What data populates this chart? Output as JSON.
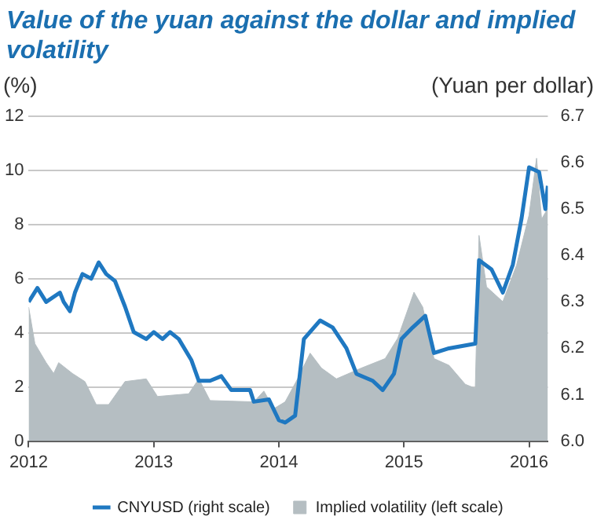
{
  "chart_data": {
    "type": "area",
    "title": "Value of the yuan against the dollar and implied volatility",
    "ylabel": "(%)",
    "y2label": "(Yuan per dollar)",
    "xlim": [
      2012,
      2016.15
    ],
    "xticks": [
      2012,
      2013,
      2014,
      2015,
      2016
    ],
    "ylim": [
      0,
      12
    ],
    "yticks": [
      0,
      2,
      4,
      6,
      8,
      10,
      12
    ],
    "y2lim": [
      6.0,
      6.7
    ],
    "y2ticks": [
      {
        "value": 6.0,
        "label": "6.0"
      },
      {
        "value": 6.1,
        "label": "6.1"
      },
      {
        "value": 6.2,
        "label": "6.2"
      },
      {
        "value": 6.3,
        "label": "6.3"
      },
      {
        "value": 6.4,
        "label": "6.4"
      },
      {
        "value": 6.5,
        "label": "6.5"
      },
      {
        "value": 6.6,
        "label": "6.6"
      },
      {
        "value": 6.7,
        "label": "6.7"
      }
    ],
    "grid": "y",
    "legend": "bottom",
    "series": [
      {
        "name": "Implied volatility (left scale)",
        "color": "#b5bec2",
        "x": [
          2012.0,
          2012.05,
          2012.14,
          2012.2,
          2012.24,
          2012.35,
          2012.45,
          2012.54,
          2012.64,
          2012.77,
          2012.94,
          2013.03,
          2013.28,
          2013.36,
          2013.45,
          2013.8,
          2013.88,
          2013.96,
          2014.05,
          2014.15,
          2014.25,
          2014.34,
          2014.46,
          2014.66,
          2014.85,
          2014.95,
          2015.08,
          2015.15,
          2015.24,
          2015.36,
          2015.49,
          2015.57,
          2015.6,
          2015.66,
          2015.79,
          2015.9,
          2016.0,
          2016.06,
          2016.1,
          2016.15
        ],
        "values": [
          4.95,
          3.6,
          2.9,
          2.5,
          2.9,
          2.5,
          2.2,
          1.35,
          1.35,
          2.2,
          2.3,
          1.65,
          1.75,
          2.3,
          1.5,
          1.45,
          1.85,
          1.2,
          1.45,
          2.3,
          3.25,
          2.7,
          2.3,
          2.7,
          3.05,
          3.8,
          5.5,
          4.95,
          3.05,
          2.8,
          2.1,
          1.95,
          7.6,
          5.7,
          5.15,
          6.5,
          8.35,
          10.45,
          8.2,
          8.6
        ]
      },
      {
        "name": "CNYUSD (right scale)",
        "type": "line",
        "axis": "y2",
        "color": "#1f78c1",
        "x": [
          2012.0,
          2012.07,
          2012.14,
          2012.25,
          2012.28,
          2012.33,
          2012.37,
          2012.43,
          2012.5,
          2012.56,
          2012.62,
          2012.69,
          2012.77,
          2012.84,
          2012.94,
          2013.0,
          2013.07,
          2013.13,
          2013.2,
          2013.3,
          2013.36,
          2013.45,
          2013.54,
          2013.62,
          2013.77,
          2013.8,
          2013.92,
          2014.0,
          2014.05,
          2014.13,
          2014.2,
          2014.33,
          2014.43,
          2014.54,
          2014.62,
          2014.75,
          2014.83,
          2014.92,
          2014.98,
          2015.07,
          2015.17,
          2015.24,
          2015.36,
          2015.57,
          2015.6,
          2015.7,
          2015.79,
          2015.87,
          2015.94,
          2016.0,
          2016.08,
          2016.13,
          2016.15
        ],
        "values": [
          6.3,
          6.33,
          6.3,
          6.32,
          6.3,
          6.28,
          6.32,
          6.36,
          6.35,
          6.385,
          6.36,
          6.345,
          6.29,
          6.235,
          6.22,
          6.235,
          6.22,
          6.235,
          6.22,
          6.175,
          6.13,
          6.13,
          6.14,
          6.11,
          6.11,
          6.085,
          6.09,
          6.045,
          6.04,
          6.055,
          6.22,
          6.26,
          6.245,
          6.2,
          6.145,
          6.13,
          6.11,
          6.145,
          6.22,
          6.245,
          6.27,
          6.19,
          6.2,
          6.21,
          6.39,
          6.37,
          6.32,
          6.38,
          6.48,
          6.59,
          6.58,
          6.5,
          6.55
        ]
      }
    ]
  }
}
